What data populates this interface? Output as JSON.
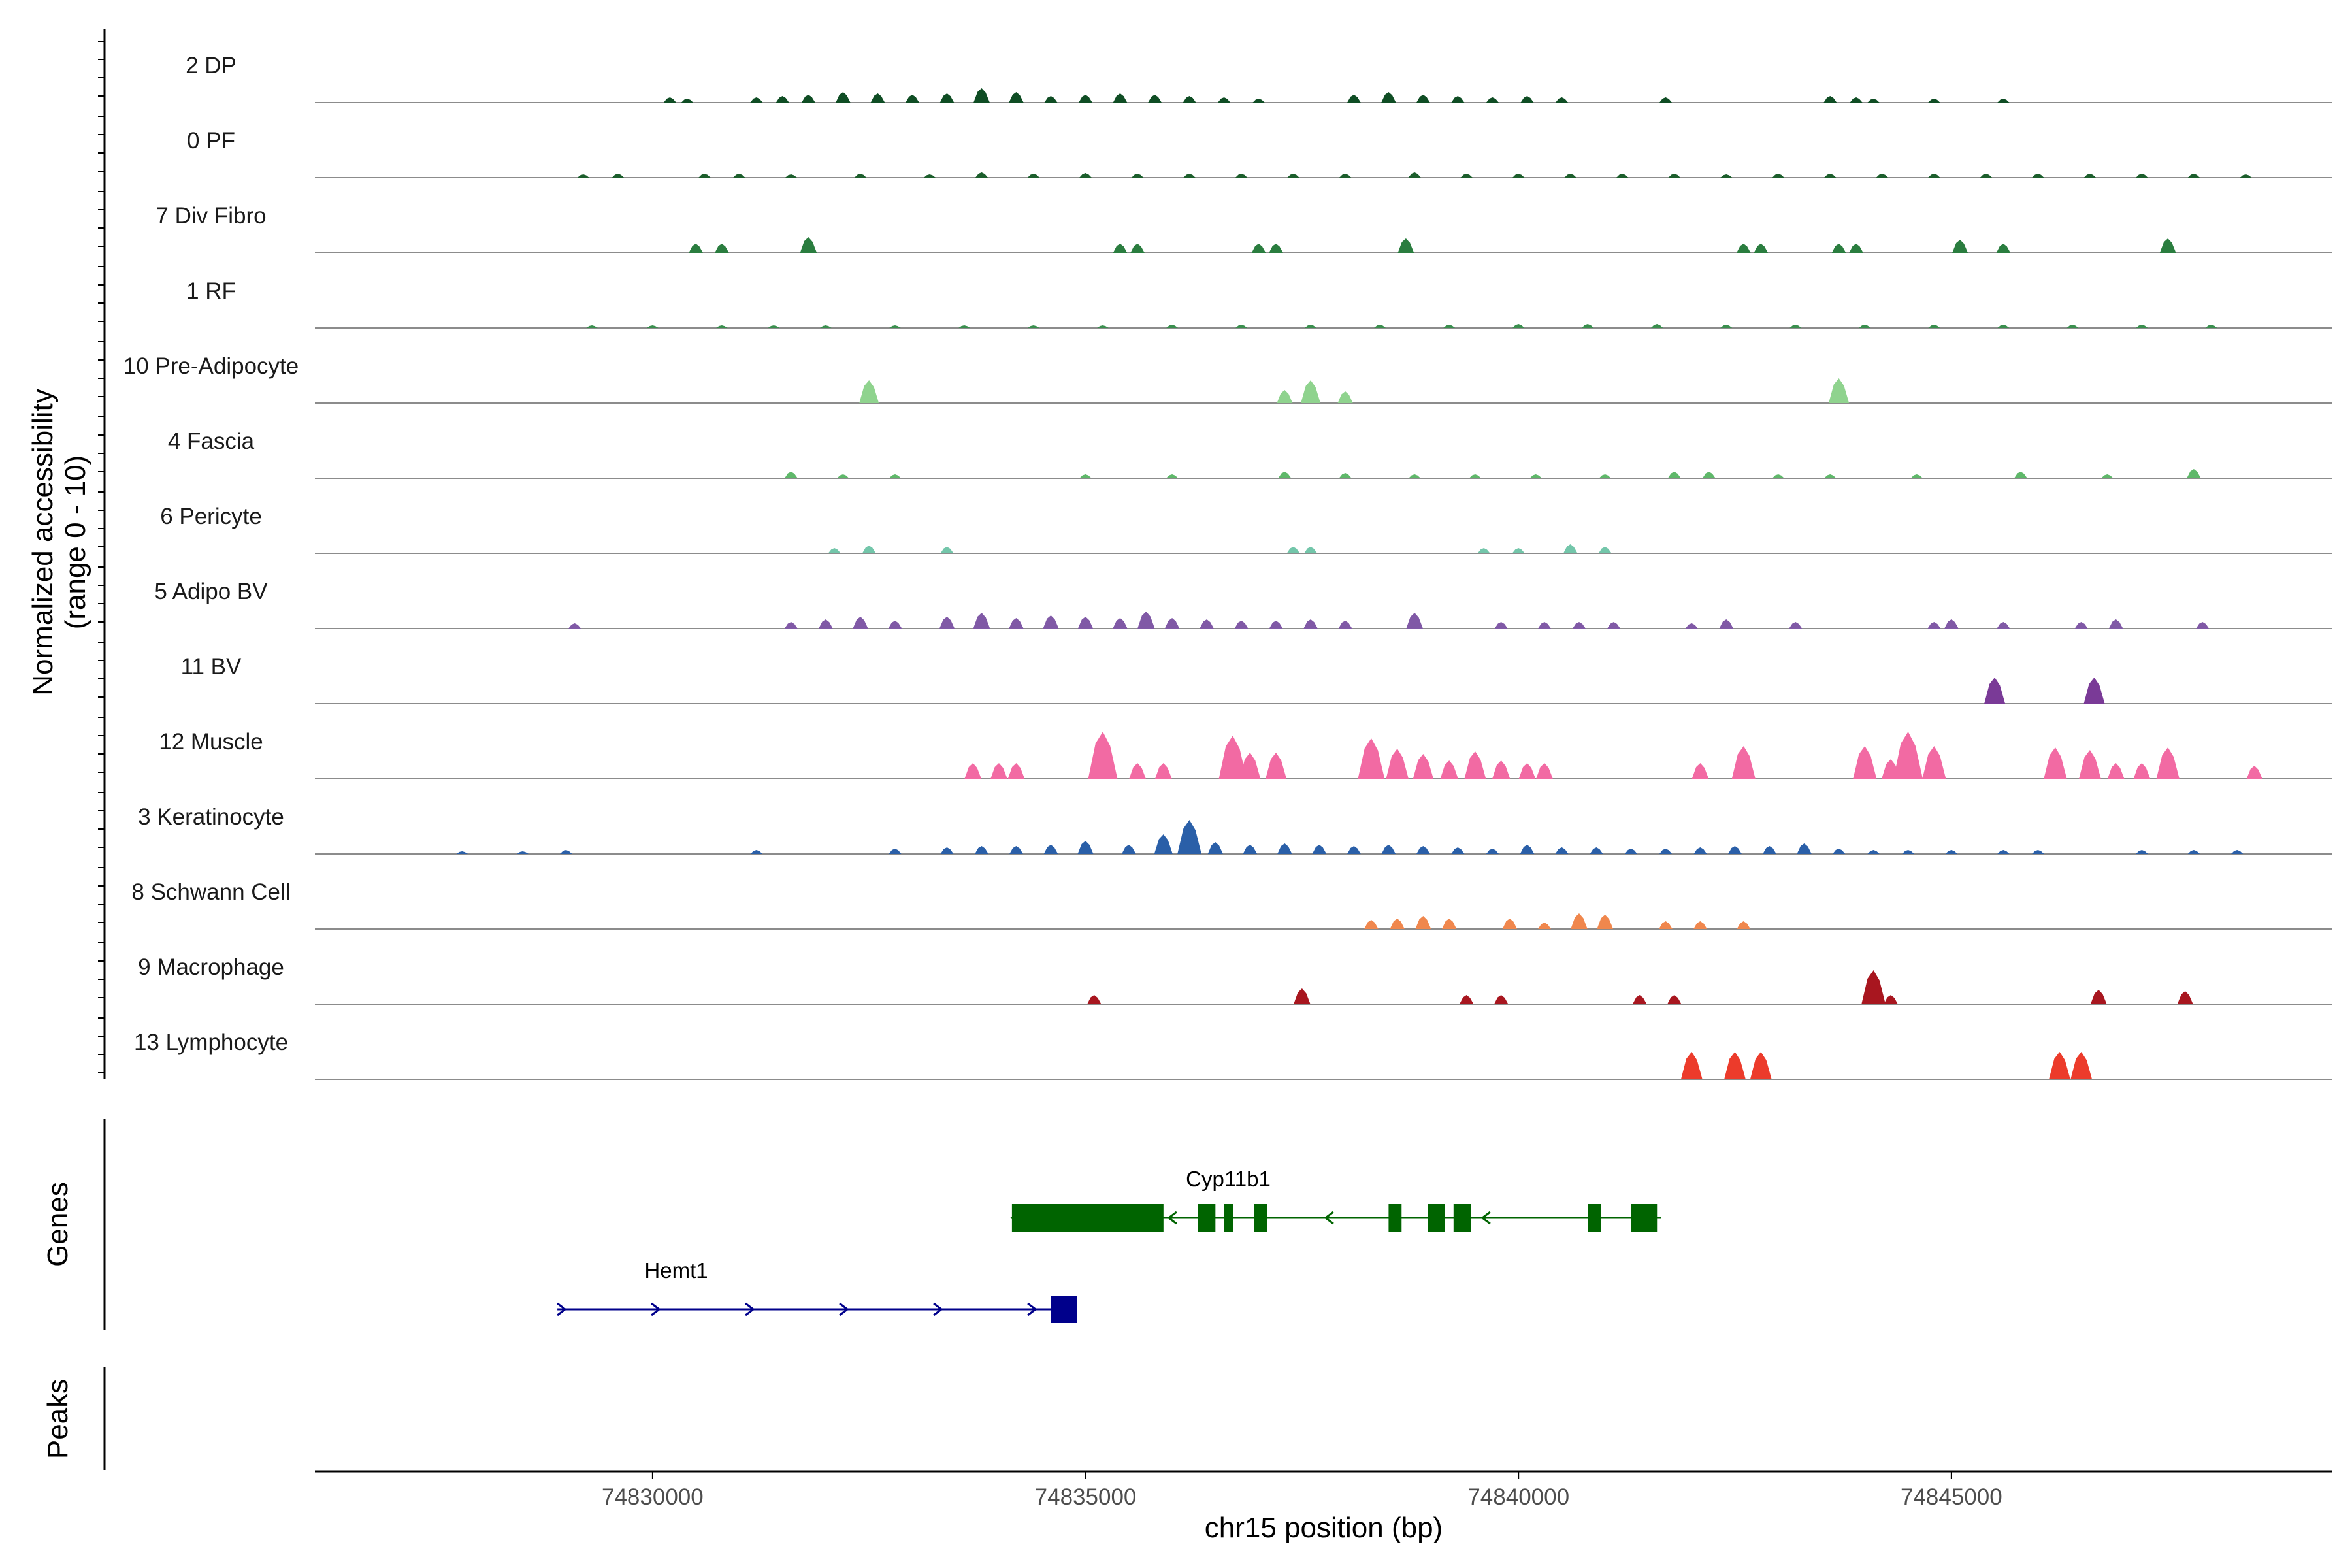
{
  "chart_data": {
    "type": "coverage",
    "chromosome": "chr15",
    "xlabel": "chr15 position (bp)",
    "ylabel": "Normalized accessibility",
    "ylabel_range": "(range 0 - 10)",
    "xlim": [
      74826100,
      74849400
    ],
    "xticks": [
      74830000,
      74835000,
      74840000,
      74845000
    ],
    "xtick_labels": [
      "74830000",
      "74835000",
      "74840000",
      "74845000"
    ],
    "tracks": [
      {
        "name": "2 DP",
        "color": "#0f4d24",
        "peaks": [
          [
            74830200,
            0.08
          ],
          [
            74830400,
            0.06
          ],
          [
            74831200,
            0.08
          ],
          [
            74831500,
            0.1
          ],
          [
            74831800,
            0.12
          ],
          [
            74832200,
            0.16
          ],
          [
            74832600,
            0.14
          ],
          [
            74833000,
            0.12
          ],
          [
            74833400,
            0.14
          ],
          [
            74833800,
            0.22
          ],
          [
            74834200,
            0.16
          ],
          [
            74834600,
            0.1
          ],
          [
            74835000,
            0.12
          ],
          [
            74835400,
            0.14
          ],
          [
            74835800,
            0.12
          ],
          [
            74836200,
            0.1
          ],
          [
            74836600,
            0.08
          ],
          [
            74837000,
            0.06
          ],
          [
            74838100,
            0.12
          ],
          [
            74838500,
            0.16
          ],
          [
            74838900,
            0.12
          ],
          [
            74839300,
            0.1
          ],
          [
            74839700,
            0.08
          ],
          [
            74840100,
            0.1
          ],
          [
            74840500,
            0.08
          ],
          [
            74841700,
            0.08
          ],
          [
            74843600,
            0.1
          ],
          [
            74843900,
            0.08
          ],
          [
            74844100,
            0.06
          ],
          [
            74844800,
            0.06
          ],
          [
            74845600,
            0.06
          ]
        ]
      },
      {
        "name": "0 PF",
        "color": "#1c5e2c",
        "peaks": [
          [
            74829200,
            0.05
          ],
          [
            74829600,
            0.06
          ],
          [
            74830600,
            0.06
          ],
          [
            74831000,
            0.06
          ],
          [
            74831600,
            0.05
          ],
          [
            74832400,
            0.06
          ],
          [
            74833200,
            0.05
          ],
          [
            74833800,
            0.08
          ],
          [
            74834400,
            0.06
          ],
          [
            74835000,
            0.07
          ],
          [
            74835600,
            0.06
          ],
          [
            74836200,
            0.06
          ],
          [
            74836800,
            0.06
          ],
          [
            74837400,
            0.06
          ],
          [
            74838000,
            0.06
          ],
          [
            74838800,
            0.08
          ],
          [
            74839400,
            0.06
          ],
          [
            74840000,
            0.06
          ],
          [
            74840600,
            0.06
          ],
          [
            74841200,
            0.06
          ],
          [
            74841800,
            0.06
          ],
          [
            74842400,
            0.05
          ],
          [
            74843000,
            0.06
          ],
          [
            74843600,
            0.06
          ],
          [
            74844200,
            0.06
          ],
          [
            74844800,
            0.06
          ],
          [
            74845400,
            0.06
          ],
          [
            74846000,
            0.06
          ],
          [
            74846600,
            0.06
          ],
          [
            74847200,
            0.06
          ],
          [
            74847800,
            0.06
          ],
          [
            74848400,
            0.05
          ]
        ]
      },
      {
        "name": "7 Div Fibro",
        "color": "#2a7d3f",
        "peaks": [
          [
            74830500,
            0.14
          ],
          [
            74830800,
            0.14
          ],
          [
            74831800,
            0.24
          ],
          [
            74835400,
            0.14
          ],
          [
            74835600,
            0.14
          ],
          [
            74837000,
            0.14
          ],
          [
            74837200,
            0.14
          ],
          [
            74838700,
            0.22
          ],
          [
            74842600,
            0.14
          ],
          [
            74842800,
            0.14
          ],
          [
            74843700,
            0.14
          ],
          [
            74843900,
            0.14
          ],
          [
            74845100,
            0.2
          ],
          [
            74845600,
            0.14
          ],
          [
            74847500,
            0.22
          ]
        ]
      },
      {
        "name": "1 RF",
        "color": "#3a8f4e",
        "peaks": [
          [
            74829300,
            0.04
          ],
          [
            74830000,
            0.04
          ],
          [
            74830800,
            0.04
          ],
          [
            74831400,
            0.04
          ],
          [
            74832000,
            0.04
          ],
          [
            74832800,
            0.04
          ],
          [
            74833600,
            0.04
          ],
          [
            74834400,
            0.04
          ],
          [
            74835200,
            0.04
          ],
          [
            74836000,
            0.05
          ],
          [
            74836800,
            0.05
          ],
          [
            74837600,
            0.05
          ],
          [
            74838400,
            0.05
          ],
          [
            74839200,
            0.05
          ],
          [
            74840000,
            0.06
          ],
          [
            74840800,
            0.06
          ],
          [
            74841600,
            0.06
          ],
          [
            74842400,
            0.05
          ],
          [
            74843200,
            0.05
          ],
          [
            74844000,
            0.05
          ],
          [
            74844800,
            0.05
          ],
          [
            74845600,
            0.05
          ],
          [
            74846400,
            0.05
          ],
          [
            74847200,
            0.05
          ],
          [
            74848000,
            0.05
          ]
        ]
      },
      {
        "name": "10 Pre-Adipocyte",
        "color": "#8fd38e",
        "peaks": [
          [
            74832500,
            0.35
          ],
          [
            74837300,
            0.2
          ],
          [
            74837600,
            0.35
          ],
          [
            74838000,
            0.18
          ],
          [
            74843700,
            0.38
          ]
        ]
      },
      {
        "name": "4 Fascia",
        "color": "#5fb86a",
        "peaks": [
          [
            74831600,
            0.1
          ],
          [
            74832200,
            0.06
          ],
          [
            74832800,
            0.06
          ],
          [
            74835000,
            0.06
          ],
          [
            74836000,
            0.06
          ],
          [
            74837300,
            0.1
          ],
          [
            74838000,
            0.08
          ],
          [
            74838800,
            0.06
          ],
          [
            74839500,
            0.06
          ],
          [
            74840200,
            0.06
          ],
          [
            74841000,
            0.06
          ],
          [
            74841800,
            0.1
          ],
          [
            74842200,
            0.1
          ],
          [
            74843000,
            0.06
          ],
          [
            74843600,
            0.06
          ],
          [
            74844600,
            0.06
          ],
          [
            74845800,
            0.1
          ],
          [
            74846800,
            0.06
          ],
          [
            74847800,
            0.14
          ]
        ]
      },
      {
        "name": "6 Pericyte",
        "color": "#73c6aa",
        "peaks": [
          [
            74832100,
            0.08
          ],
          [
            74832500,
            0.12
          ],
          [
            74833400,
            0.1
          ],
          [
            74837400,
            0.1
          ],
          [
            74837600,
            0.1
          ],
          [
            74839600,
            0.08
          ],
          [
            74840000,
            0.08
          ],
          [
            74840600,
            0.14
          ],
          [
            74841000,
            0.1
          ]
        ]
      },
      {
        "name": "5 Adipo BV",
        "color": "#8059a6",
        "peaks": [
          [
            74829100,
            0.08
          ],
          [
            74831600,
            0.1
          ],
          [
            74832000,
            0.14
          ],
          [
            74832400,
            0.18
          ],
          [
            74832800,
            0.12
          ],
          [
            74833400,
            0.18
          ],
          [
            74833800,
            0.24
          ],
          [
            74834200,
            0.16
          ],
          [
            74834600,
            0.2
          ],
          [
            74835000,
            0.18
          ],
          [
            74835400,
            0.16
          ],
          [
            74835700,
            0.26
          ],
          [
            74836000,
            0.16
          ],
          [
            74836400,
            0.14
          ],
          [
            74836800,
            0.12
          ],
          [
            74837200,
            0.12
          ],
          [
            74837600,
            0.14
          ],
          [
            74838000,
            0.12
          ],
          [
            74838800,
            0.24
          ],
          [
            74839800,
            0.1
          ],
          [
            74840300,
            0.1
          ],
          [
            74840700,
            0.1
          ],
          [
            74841100,
            0.1
          ],
          [
            74842000,
            0.08
          ],
          [
            74842400,
            0.14
          ],
          [
            74843200,
            0.1
          ],
          [
            74844800,
            0.1
          ],
          [
            74845000,
            0.14
          ],
          [
            74845600,
            0.1
          ],
          [
            74846500,
            0.1
          ],
          [
            74846900,
            0.14
          ],
          [
            74847900,
            0.1
          ]
        ]
      },
      {
        "name": "11 BV",
        "color": "#7a3a97",
        "peaks": [
          [
            74845500,
            0.4
          ],
          [
            74846650,
            0.4
          ]
        ]
      },
      {
        "name": "12 Muscle",
        "color": "#f26aa3",
        "peaks": [
          [
            74833700,
            0.24
          ],
          [
            74834000,
            0.24
          ],
          [
            74834200,
            0.24
          ],
          [
            74835200,
            0.72
          ],
          [
            74835600,
            0.24
          ],
          [
            74835900,
            0.24
          ],
          [
            74836700,
            0.66
          ],
          [
            74836900,
            0.4
          ],
          [
            74837200,
            0.4
          ],
          [
            74838300,
            0.62
          ],
          [
            74838600,
            0.46
          ],
          [
            74838900,
            0.38
          ],
          [
            74839200,
            0.28
          ],
          [
            74839500,
            0.42
          ],
          [
            74839800,
            0.28
          ],
          [
            74840100,
            0.24
          ],
          [
            74840300,
            0.24
          ],
          [
            74842100,
            0.24
          ],
          [
            74842600,
            0.5
          ],
          [
            74844000,
            0.5
          ],
          [
            74844300,
            0.3
          ],
          [
            74844500,
            0.72
          ],
          [
            74844800,
            0.5
          ],
          [
            74846200,
            0.48
          ],
          [
            74846600,
            0.44
          ],
          [
            74846900,
            0.24
          ],
          [
            74847200,
            0.24
          ],
          [
            74847500,
            0.48
          ],
          [
            74848500,
            0.2
          ]
        ]
      },
      {
        "name": "3 Keratinocyte",
        "color": "#2a5fa8",
        "peaks": [
          [
            74827800,
            0.04
          ],
          [
            74828500,
            0.04
          ],
          [
            74829000,
            0.06
          ],
          [
            74831200,
            0.06
          ],
          [
            74832800,
            0.08
          ],
          [
            74833400,
            0.1
          ],
          [
            74833800,
            0.12
          ],
          [
            74834200,
            0.12
          ],
          [
            74834600,
            0.14
          ],
          [
            74835000,
            0.2
          ],
          [
            74835500,
            0.14
          ],
          [
            74835900,
            0.3
          ],
          [
            74836200,
            0.52
          ],
          [
            74836500,
            0.18
          ],
          [
            74836900,
            0.14
          ],
          [
            74837300,
            0.16
          ],
          [
            74837700,
            0.14
          ],
          [
            74838100,
            0.12
          ],
          [
            74838500,
            0.14
          ],
          [
            74838900,
            0.12
          ],
          [
            74839300,
            0.1
          ],
          [
            74839700,
            0.08
          ],
          [
            74840100,
            0.14
          ],
          [
            74840500,
            0.1
          ],
          [
            74840900,
            0.1
          ],
          [
            74841300,
            0.08
          ],
          [
            74841700,
            0.08
          ],
          [
            74842100,
            0.1
          ],
          [
            74842500,
            0.12
          ],
          [
            74842900,
            0.12
          ],
          [
            74843300,
            0.16
          ],
          [
            74843700,
            0.08
          ],
          [
            74844100,
            0.06
          ],
          [
            74844500,
            0.06
          ],
          [
            74845000,
            0.06
          ],
          [
            74845600,
            0.06
          ],
          [
            74846000,
            0.06
          ],
          [
            74847200,
            0.06
          ],
          [
            74847800,
            0.06
          ],
          [
            74848300,
            0.06
          ]
        ]
      },
      {
        "name": "8 Schwann Cell",
        "color": "#f0874d",
        "peaks": [
          [
            74838300,
            0.14
          ],
          [
            74838600,
            0.16
          ],
          [
            74838900,
            0.2
          ],
          [
            74839200,
            0.16
          ],
          [
            74839900,
            0.16
          ],
          [
            74840300,
            0.1
          ],
          [
            74840700,
            0.24
          ],
          [
            74841000,
            0.22
          ],
          [
            74841700,
            0.12
          ],
          [
            74842100,
            0.12
          ],
          [
            74842600,
            0.12
          ]
        ]
      },
      {
        "name": "9 Macrophage",
        "color": "#a8161f",
        "peaks": [
          [
            74835100,
            0.14
          ],
          [
            74837500,
            0.24
          ],
          [
            74839400,
            0.14
          ],
          [
            74839800,
            0.14
          ],
          [
            74841400,
            0.14
          ],
          [
            74841800,
            0.14
          ],
          [
            74844100,
            0.52
          ],
          [
            74844300,
            0.14
          ],
          [
            74846700,
            0.22
          ],
          [
            74847700,
            0.2
          ]
        ]
      },
      {
        "name": "13 Lymphocyte",
        "color": "#ec3b2b",
        "peaks": [
          [
            74842000,
            0.42
          ],
          [
            74842500,
            0.42
          ],
          [
            74842800,
            0.42
          ],
          [
            74846250,
            0.42
          ],
          [
            74846500,
            0.42
          ]
        ]
      }
    ],
    "genes_panel_label": "Genes",
    "peaks_panel_label": "Peaks",
    "genes": [
      {
        "name": "Cyp11b1",
        "strand": "-",
        "color": "#006400",
        "start": 74834150,
        "end": 74841650,
        "exons": [
          [
            74834150,
            74835900
          ],
          [
            74836300,
            74836500
          ],
          [
            74836600,
            74836700
          ],
          [
            74836950,
            74837100
          ],
          [
            74838500,
            74838650
          ],
          [
            74838950,
            74839150
          ],
          [
            74839250,
            74839450
          ],
          [
            74840800,
            74840950
          ],
          [
            74841300,
            74841600
          ]
        ]
      },
      {
        "name": "Hemt1",
        "strand": "+",
        "color": "#00008b",
        "start": 74828900,
        "end": 74834900,
        "exons": [
          [
            74834600,
            74834900
          ]
        ]
      }
    ]
  }
}
